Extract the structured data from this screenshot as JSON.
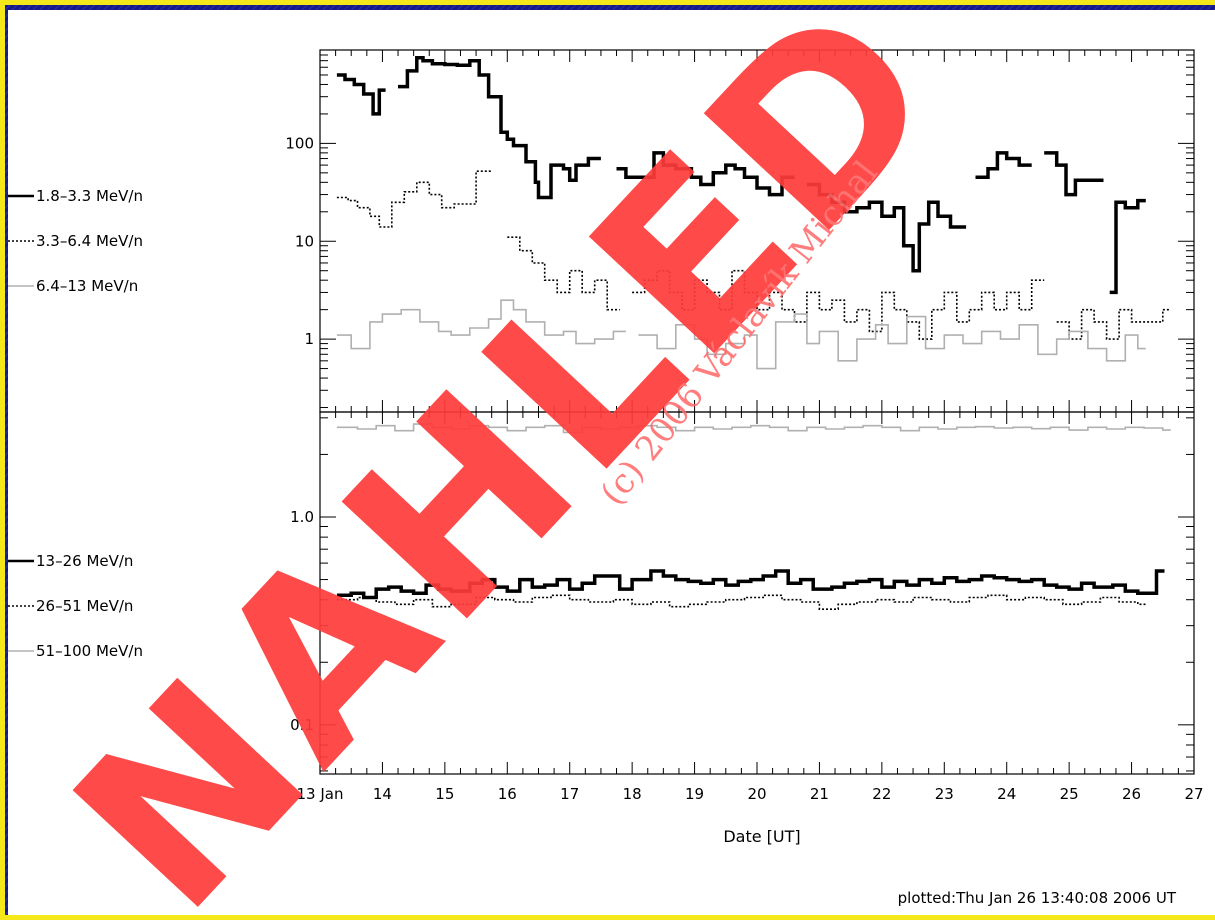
{
  "colors": {
    "background": "#1a1d8f",
    "frame": "#f4e81a",
    "panel": "#ffffff",
    "watermark": "#ff3b3b"
  },
  "watermark": {
    "big_text": "NAHLED",
    "copyright_text": "(c) 2006 Václavík Michal"
  },
  "plotted_stamp": "plotted:Thu Jan 26 13:40:08 2006 UT",
  "chart_data": [
    {
      "type": "line",
      "scale": "log",
      "xlim": [
        13,
        27
      ],
      "ylim": [
        0.18,
        900
      ],
      "ytick_values": [
        1,
        10,
        100
      ],
      "ytick_labels": [
        "1",
        "10",
        "100"
      ],
      "series": [
        {
          "name": "1.8–3.3 MeV/n",
          "style": "solid",
          "color": "#000000",
          "x": [
            13.27,
            13.4,
            13.55,
            13.7,
            13.85,
            13.95,
            14.05,
            14.25,
            14.4,
            14.55,
            14.65,
            14.8,
            15.0,
            15.2,
            15.4,
            15.55,
            15.7,
            15.9,
            16.0,
            16.1,
            16.3,
            16.45,
            16.5,
            16.7,
            16.9,
            17.0,
            17.1,
            17.3,
            17.5,
            17.75,
            17.9,
            18.35,
            18.5,
            18.7,
            18.95,
            19.1,
            19.3,
            19.5,
            19.65,
            19.8,
            20.0,
            20.2,
            20.4,
            20.6,
            20.8,
            21.0,
            21.2,
            21.4,
            21.6,
            21.8,
            22.0,
            22.2,
            22.35,
            22.5,
            22.6,
            22.75,
            22.9,
            23.1,
            23.35,
            23.5,
            23.7,
            23.85,
            24.0,
            24.2,
            24.4,
            24.6,
            24.8,
            24.95,
            25.1,
            25.55,
            25.65,
            25.75,
            25.9,
            26.1
          ],
          "y": [
            500,
            450,
            400,
            320,
            200,
            350,
            null,
            380,
            550,
            750,
            700,
            650,
            640,
            630,
            700,
            500,
            300,
            130,
            110,
            95,
            65,
            40,
            28,
            60,
            55,
            42,
            60,
            70,
            null,
            55,
            45,
            80,
            60,
            55,
            45,
            38,
            50,
            60,
            55,
            45,
            35,
            30,
            45,
            null,
            38,
            30,
            25,
            20,
            22,
            25,
            18,
            22,
            9,
            5,
            15,
            25,
            18,
            14,
            null,
            45,
            55,
            80,
            70,
            60,
            null,
            80,
            60,
            30,
            42,
            null,
            3,
            25,
            22,
            26
          ],
          "gaps": true
        },
        {
          "name": "3.3–6.4 MeV/n",
          "style": "dotted",
          "color": "#000000",
          "x": [
            13.27,
            13.45,
            13.6,
            13.8,
            13.95,
            14.15,
            14.35,
            14.55,
            14.75,
            14.95,
            15.15,
            15.5,
            15.75,
            16.0,
            16.2,
            16.4,
            16.6,
            16.8,
            17.0,
            17.2,
            17.4,
            17.6,
            17.8,
            18.0,
            18.2,
            18.4,
            18.6,
            18.8,
            19.0,
            19.2,
            19.4,
            19.6,
            19.8,
            20.0,
            20.2,
            20.4,
            20.6,
            20.8,
            21.0,
            21.2,
            21.4,
            21.6,
            21.8,
            22.0,
            22.2,
            22.4,
            22.6,
            22.8,
            23.0,
            23.2,
            23.4,
            23.6,
            23.8,
            24.0,
            24.2,
            24.4,
            24.6,
            24.8,
            25.0,
            25.2,
            25.4,
            25.6,
            25.8,
            26.0,
            26.5
          ],
          "y": [
            28,
            26,
            22,
            18,
            14,
            25,
            32,
            40,
            30,
            22,
            24,
            52,
            null,
            11,
            8,
            6,
            4,
            3,
            5,
            3,
            4,
            2,
            null,
            3,
            4,
            5,
            3,
            2,
            4,
            3,
            2,
            5,
            3,
            2,
            3,
            2,
            1.5,
            3,
            2,
            2.5,
            1.5,
            2,
            1.2,
            3,
            2,
            1.5,
            1,
            2,
            3,
            1.5,
            2,
            3,
            2,
            3,
            2,
            4,
            null,
            1.5,
            1,
            2,
            1.5,
            1,
            2,
            1.5,
            2
          ],
          "gaps": true
        },
        {
          "name": "6.4–13 MeV/n",
          "style": "solid",
          "color": "#b0b0b0",
          "x": [
            13.27,
            13.5,
            13.8,
            14.0,
            14.3,
            14.6,
            14.9,
            15.1,
            15.4,
            15.7,
            15.9,
            16.1,
            16.3,
            16.6,
            16.9,
            17.1,
            17.4,
            17.7,
            17.9,
            18.1,
            18.4,
            18.7,
            19.0,
            19.2,
            19.5,
            19.8,
            20.0,
            20.3,
            20.6,
            20.8,
            21.0,
            21.3,
            21.6,
            21.9,
            22.1,
            22.4,
            22.7,
            23.0,
            23.3,
            23.6,
            23.9,
            24.2,
            24.5,
            24.8,
            25.0,
            25.3,
            25.6,
            25.9,
            26.1
          ],
          "y": [
            1.1,
            0.8,
            1.5,
            1.8,
            2,
            1.5,
            1.2,
            1.1,
            1.3,
            1.6,
            2.5,
            2,
            1.5,
            1.1,
            1.2,
            0.9,
            1,
            1.2,
            null,
            1.1,
            0.8,
            1.4,
            1,
            0.7,
            0.9,
            1.1,
            0.5,
            1.5,
            1.8,
            0.9,
            1.2,
            0.6,
            1,
            1.4,
            0.9,
            1.7,
            0.8,
            1.1,
            0.9,
            1.2,
            1,
            1.4,
            0.7,
            1,
            1.2,
            0.8,
            0.6,
            1.1,
            0.8
          ],
          "gaps": true
        }
      ]
    },
    {
      "type": "line",
      "scale": "log",
      "xlim": [
        13,
        27
      ],
      "ylim": [
        0.058,
        3.2
      ],
      "ytick_values": [
        0.1,
        1.0
      ],
      "ytick_labels": [
        "0.1",
        "1.0"
      ],
      "xlabel": "Date [UT]",
      "xticks": [
        "13 Jan",
        "14",
        "15",
        "16",
        "17",
        "18",
        "19",
        "20",
        "21",
        "22",
        "23",
        "24",
        "25",
        "26",
        "27"
      ],
      "series": [
        {
          "name": "13–26 MeV/n",
          "style": "solid",
          "color": "#000000",
          "x": [
            13.27,
            13.5,
            13.7,
            13.9,
            14.1,
            14.3,
            14.5,
            14.7,
            14.9,
            15.1,
            15.4,
            15.6,
            15.8,
            16.0,
            16.2,
            16.4,
            16.6,
            16.8,
            17.0,
            17.2,
            17.4,
            17.8,
            18.0,
            18.3,
            18.5,
            18.7,
            18.9,
            19.1,
            19.3,
            19.5,
            19.7,
            19.9,
            20.1,
            20.3,
            20.5,
            20.7,
            20.9,
            21.2,
            21.4,
            21.6,
            21.8,
            22.0,
            22.2,
            22.4,
            22.6,
            22.8,
            23.0,
            23.2,
            23.4,
            23.6,
            23.8,
            24.0,
            24.2,
            24.4,
            24.6,
            24.8,
            25.0,
            25.2,
            25.4,
            25.7,
            25.9,
            26.1,
            26.4
          ],
          "y": [
            0.42,
            0.43,
            0.41,
            0.45,
            0.46,
            0.44,
            0.43,
            0.47,
            0.45,
            0.44,
            0.48,
            0.5,
            0.46,
            0.44,
            0.5,
            0.46,
            0.47,
            0.5,
            0.45,
            0.48,
            0.52,
            0.45,
            0.5,
            0.55,
            0.52,
            0.5,
            0.49,
            0.48,
            0.5,
            0.47,
            0.49,
            0.5,
            0.52,
            0.55,
            0.48,
            0.5,
            0.45,
            0.46,
            0.48,
            0.49,
            0.5,
            0.46,
            0.49,
            0.47,
            0.5,
            0.48,
            0.51,
            0.49,
            0.5,
            0.52,
            0.51,
            0.5,
            0.49,
            0.5,
            0.47,
            0.46,
            0.45,
            0.48,
            0.46,
            0.47,
            0.44,
            0.43,
            0.55
          ],
          "gaps": true
        },
        {
          "name": "26–51 MeV/n",
          "style": "dotted",
          "color": "#000000",
          "x": [
            13.27,
            13.6,
            13.9,
            14.2,
            14.5,
            14.8,
            15.1,
            15.5,
            15.8,
            16.1,
            16.4,
            16.7,
            17.0,
            17.3,
            17.7,
            18.0,
            18.3,
            18.6,
            18.9,
            19.2,
            19.5,
            19.8,
            20.1,
            20.4,
            20.7,
            21.0,
            21.3,
            21.6,
            21.9,
            22.2,
            22.5,
            22.8,
            23.1,
            23.4,
            23.7,
            24.0,
            24.3,
            24.6,
            24.9,
            25.2,
            25.5,
            25.8,
            26.1
          ],
          "y": [
            0.4,
            0.41,
            0.39,
            0.38,
            0.4,
            0.37,
            0.38,
            0.41,
            0.4,
            0.39,
            0.41,
            0.42,
            0.4,
            0.39,
            0.4,
            0.38,
            0.39,
            0.37,
            0.38,
            0.39,
            0.4,
            0.41,
            0.42,
            0.4,
            0.39,
            0.36,
            0.38,
            0.39,
            0.4,
            0.39,
            0.41,
            0.4,
            0.39,
            0.41,
            0.42,
            0.4,
            0.41,
            0.4,
            0.38,
            0.39,
            0.41,
            0.39,
            0.38
          ],
          "gaps": true
        },
        {
          "name": "51–100 MeV/n",
          "style": "solid",
          "color": "#b0b0b0",
          "x": [
            13.27,
            13.6,
            13.9,
            14.2,
            14.5,
            14.8,
            15.1,
            15.4,
            15.7,
            16.0,
            16.3,
            16.6,
            16.9,
            17.2,
            17.5,
            17.8,
            18.1,
            18.4,
            18.7,
            19.0,
            19.3,
            19.6,
            19.9,
            20.2,
            20.5,
            20.8,
            21.1,
            21.4,
            21.7,
            22.0,
            22.3,
            22.6,
            22.9,
            23.2,
            23.5,
            23.8,
            24.1,
            24.4,
            24.7,
            25.0,
            25.3,
            25.6,
            25.9,
            26.2,
            26.5
          ],
          "y": [
            2.7,
            2.65,
            2.75,
            2.6,
            2.8,
            2.7,
            2.65,
            2.75,
            2.7,
            2.6,
            2.7,
            2.75,
            2.55,
            2.7,
            2.65,
            2.7,
            2.75,
            2.7,
            2.6,
            2.7,
            2.65,
            2.7,
            2.75,
            2.7,
            2.6,
            2.7,
            2.65,
            2.7,
            2.75,
            2.7,
            2.6,
            2.7,
            2.65,
            2.7,
            2.72,
            2.68,
            2.7,
            2.66,
            2.7,
            2.62,
            2.7,
            2.65,
            2.7,
            2.68,
            2.62
          ],
          "gaps": true
        }
      ]
    }
  ]
}
